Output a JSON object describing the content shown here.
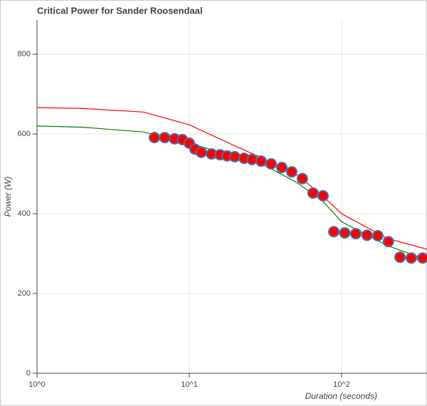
{
  "chart_data": {
    "type": "scatter",
    "title": "Critical Power for Sander Roosendaal",
    "x_label": "Duration (seconds)",
    "y_label": "Power (W)",
    "x_scale": "log",
    "grid": true,
    "xlim": [
      1,
      364
    ],
    "ylim": [
      0,
      886
    ],
    "xticks": [
      {
        "value": 1,
        "label": "10^0"
      },
      {
        "value": 10,
        "label": "10^1"
      },
      {
        "value": 100,
        "label": "10^2"
      }
    ],
    "yticks": [
      0,
      200,
      400,
      600,
      800
    ],
    "points": {
      "color": "#ff0000",
      "edge_color": "#4a6fa8",
      "x": [
        5.9,
        6.9,
        8.0,
        9.0,
        10,
        10.9,
        12,
        14,
        15.9,
        17.7,
        19.9,
        22.9,
        25.8,
        29.6,
        34.5,
        40.5,
        47.1,
        55.3,
        65,
        75.6,
        88.9,
        105,
        124,
        147,
        173,
        203,
        242,
        287,
        341
      ],
      "values": [
        591,
        591,
        588,
        586,
        577,
        562,
        554,
        550,
        548,
        545,
        543,
        539,
        536,
        532,
        525,
        516,
        505,
        488,
        452,
        445,
        355,
        352,
        350,
        346,
        345,
        330,
        291,
        289,
        289
      ]
    },
    "lines": [
      {
        "color": "#ff0000",
        "x": [
          1,
          2,
          5,
          10,
          20,
          30,
          50,
          75,
          100,
          200,
          364
        ],
        "values": [
          666,
          664,
          655,
          623,
          570,
          540,
          500,
          445,
          400,
          338,
          311
        ]
      },
      {
        "color": "#008000",
        "x": [
          1,
          2,
          5,
          10,
          20,
          30,
          50,
          75,
          100,
          200,
          364
        ],
        "values": [
          620,
          617,
          605,
          577,
          543,
          525,
          480,
          432,
          380,
          320,
          284
        ]
      }
    ]
  }
}
